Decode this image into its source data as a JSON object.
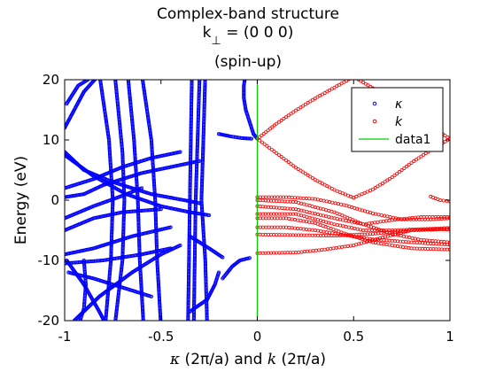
{
  "title": {
    "line1": "Complex-band structure",
    "line2_prefix": "k",
    "line2_sub": "⊥",
    "line2_rest": " = (0  0  0)",
    "line3": "(spin-up)"
  },
  "xlabel": {
    "kappa": "κ",
    "unit1": " (2π/a)  and  ",
    "k": "k",
    "unit2": " (2π/a)"
  },
  "ylabel": "Energy (eV)",
  "legend": {
    "placement": "top-right",
    "entries": [
      {
        "label": "κ",
        "marker": "circle",
        "color": "#0000ff",
        "italic": true
      },
      {
        "label": "k",
        "marker": "circle",
        "color": "#ff0000",
        "italic": true
      },
      {
        "label": "data1",
        "marker": "line",
        "color": "#00cc00",
        "italic": false
      }
    ]
  },
  "colors": {
    "kappa": "#0000ff",
    "k": "#ff0000",
    "data1": "#00cc00"
  },
  "chart_data": {
    "type": "scatter",
    "xlim": [
      -1,
      1
    ],
    "ylim": [
      -20,
      20
    ],
    "xticks": [
      -1,
      -0.5,
      0,
      0.5,
      1
    ],
    "xtick_labels": [
      "-1",
      "-0.5",
      "0",
      "0.5",
      "1"
    ],
    "yticks": [
      -20,
      -10,
      0,
      10,
      20
    ],
    "ytick_labels": [
      "-20",
      "-10",
      "0",
      "10",
      "20"
    ],
    "grid": false,
    "series": [
      {
        "name": "κ",
        "marker": "circle",
        "curves": [
          [
            [
              -0.06,
              21
            ],
            [
              -0.07,
              19
            ],
            [
              -0.07,
              17
            ],
            [
              -0.06,
              15
            ],
            [
              -0.04,
              13
            ],
            [
              -0.02,
              11
            ],
            [
              0.0,
              10.2
            ]
          ],
          [
            [
              -0.2,
              11
            ],
            [
              -0.14,
              10.6
            ],
            [
              -0.08,
              10.3
            ],
            [
              -0.03,
              10.2
            ]
          ],
          [
            [
              -0.18,
              -13
            ],
            [
              -0.13,
              -11
            ],
            [
              -0.09,
              -10
            ],
            [
              -0.04,
              -9.6
            ]
          ],
          [
            [
              -0.27,
              21
            ],
            [
              -0.28,
              10
            ],
            [
              -0.29,
              0
            ],
            [
              -0.27,
              -10
            ],
            [
              -0.26,
              -21
            ]
          ],
          [
            [
              -0.3,
              20
            ],
            [
              -0.32,
              0
            ],
            [
              -0.33,
              -21
            ]
          ],
          [
            [
              -0.34,
              20
            ],
            [
              -0.35,
              0
            ],
            [
              -0.36,
              -21
            ]
          ],
          [
            [
              -0.6,
              21
            ],
            [
              -0.55,
              10
            ],
            [
              -0.53,
              0
            ],
            [
              -0.52,
              -10
            ],
            [
              -0.5,
              -21
            ]
          ],
          [
            [
              -0.67,
              20
            ],
            [
              -0.64,
              10
            ],
            [
              -0.62,
              0
            ],
            [
              -0.61,
              -10
            ],
            [
              -0.59,
              -21
            ]
          ],
          [
            [
              -0.82,
              21
            ],
            [
              -0.77,
              10
            ],
            [
              -0.75,
              0
            ],
            [
              -0.76,
              -10
            ],
            [
              -0.79,
              -21
            ]
          ],
          [
            [
              -0.74,
              21
            ],
            [
              -0.7,
              8
            ],
            [
              -0.69,
              0
            ],
            [
              -0.7,
              -10
            ],
            [
              -0.74,
              -21
            ]
          ],
          [
            [
              -0.99,
              16
            ],
            [
              -0.93,
              19
            ],
            [
              -0.88,
              20
            ]
          ],
          [
            [
              -1.0,
              12
            ],
            [
              -0.9,
              18
            ],
            [
              -0.83,
              20.5
            ]
          ],
          [
            [
              -0.99,
              -10
            ],
            [
              -0.9,
              -14
            ],
            [
              -0.82,
              -18.5
            ],
            [
              -0.78,
              -21
            ]
          ],
          [
            [
              -0.93,
              -21
            ],
            [
              -0.9,
              -18
            ],
            [
              -0.89,
              -14
            ],
            [
              -0.9,
              -10
            ]
          ],
          [
            [
              -1.0,
              8
            ],
            [
              -0.9,
              5
            ],
            [
              -0.75,
              3
            ],
            [
              -0.55,
              1
            ],
            [
              -0.38,
              0
            ],
            [
              -0.3,
              -0.5
            ]
          ],
          [
            [
              -1.0,
              7.5
            ],
            [
              -0.85,
              4
            ],
            [
              -0.68,
              1
            ],
            [
              -0.5,
              -1
            ],
            [
              -0.35,
              -2
            ],
            [
              -0.25,
              -2.5
            ]
          ],
          [
            [
              -1.0,
              0.5
            ],
            [
              -0.9,
              1
            ],
            [
              -0.8,
              2.5
            ],
            [
              -0.6,
              4.5
            ],
            [
              -0.45,
              5.5
            ],
            [
              -0.3,
              6.5
            ]
          ],
          [
            [
              -1.0,
              2
            ],
            [
              -0.85,
              3.5
            ],
            [
              -0.7,
              5.5
            ],
            [
              -0.55,
              7
            ],
            [
              -0.4,
              8
            ]
          ],
          [
            [
              -1.0,
              -3
            ],
            [
              -0.85,
              -1
            ],
            [
              -0.72,
              0.5
            ],
            [
              -0.6,
              2
            ]
          ],
          [
            [
              -1.0,
              -5
            ],
            [
              -0.85,
              -3
            ],
            [
              -0.7,
              -2
            ],
            [
              -0.5,
              -1.5
            ]
          ],
          [
            [
              -1.0,
              -9
            ],
            [
              -0.85,
              -8
            ],
            [
              -0.65,
              -6
            ],
            [
              -0.45,
              -4.5
            ]
          ],
          [
            [
              -1.0,
              -10.5
            ],
            [
              -0.8,
              -10
            ],
            [
              -0.6,
              -9
            ],
            [
              -0.45,
              -8
            ]
          ],
          [
            [
              -0.95,
              -20
            ],
            [
              -0.82,
              -16
            ],
            [
              -0.65,
              -12
            ],
            [
              -0.5,
              -9
            ],
            [
              -0.4,
              -7.5
            ]
          ],
          [
            [
              -0.98,
              -12
            ],
            [
              -0.85,
              -13
            ],
            [
              -0.7,
              -14.5
            ],
            [
              -0.55,
              -16
            ]
          ],
          [
            [
              -0.2,
              -12
            ],
            [
              -0.22,
              -14
            ],
            [
              -0.26,
              -16.5
            ],
            [
              -0.35,
              -18.5
            ]
          ],
          [
            [
              -0.18,
              -9.5
            ],
            [
              -0.25,
              -8
            ],
            [
              -0.35,
              -6
            ]
          ]
        ]
      },
      {
        "name": "k",
        "marker": "circle",
        "curves": [
          [
            [
              0.0,
              10.2
            ],
            [
              0.1,
              12.7
            ],
            [
              0.2,
              14.9
            ],
            [
              0.3,
              16.9
            ],
            [
              0.4,
              18.7
            ],
            [
              0.5,
              20.5
            ]
          ],
          [
            [
              0.0,
              10.2
            ],
            [
              0.1,
              7.8
            ],
            [
              0.2,
              5.4
            ],
            [
              0.3,
              3.4
            ],
            [
              0.4,
              1.7
            ],
            [
              0.5,
              0.4
            ]
          ],
          [
            [
              0.5,
              0.4
            ],
            [
              0.6,
              1.8
            ],
            [
              0.7,
              3.8
            ],
            [
              0.8,
              6.2
            ],
            [
              0.9,
              8.3
            ],
            [
              1.0,
              10.2
            ]
          ],
          [
            [
              0.5,
              20.5
            ],
            [
              0.6,
              18.6
            ],
            [
              0.7,
              16.7
            ],
            [
              0.8,
              14.5
            ],
            [
              0.9,
              12.3
            ],
            [
              1.0,
              10.2
            ]
          ],
          [
            [
              0.0,
              0.5
            ],
            [
              0.15,
              0.5
            ],
            [
              0.3,
              0.2
            ],
            [
              0.45,
              -0.8
            ],
            [
              0.6,
              -2.2
            ],
            [
              0.75,
              -3.2
            ],
            [
              0.9,
              -3.2
            ],
            [
              1.0,
              -3.0
            ]
          ],
          [
            [
              0.0,
              0.0
            ],
            [
              0.2,
              -0.3
            ],
            [
              0.4,
              -2.0
            ],
            [
              0.55,
              -4.0
            ],
            [
              0.7,
              -5.6
            ],
            [
              0.85,
              -6.6
            ],
            [
              1.0,
              -7.0
            ]
          ],
          [
            [
              0.0,
              -2.3
            ],
            [
              0.2,
              -2.3
            ],
            [
              0.4,
              -4.0
            ],
            [
              0.55,
              -5.0
            ],
            [
              0.7,
              -5.0
            ],
            [
              0.85,
              -4.8
            ],
            [
              1.0,
              -4.6
            ]
          ],
          [
            [
              0.0,
              -3.0
            ],
            [
              0.15,
              -3.0
            ],
            [
              0.3,
              -3.8
            ],
            [
              0.45,
              -5.5
            ],
            [
              0.6,
              -7.0
            ],
            [
              0.8,
              -8.0
            ],
            [
              1.0,
              -8.2
            ]
          ],
          [
            [
              0.0,
              -4.5
            ],
            [
              0.15,
              -4.5
            ],
            [
              0.3,
              -5.0
            ],
            [
              0.45,
              -5.8
            ],
            [
              0.6,
              -6.5
            ],
            [
              0.8,
              -7.0
            ],
            [
              1.0,
              -7.4
            ]
          ],
          [
            [
              0.0,
              -5.7
            ],
            [
              0.2,
              -5.8
            ],
            [
              0.4,
              -5.9
            ],
            [
              0.6,
              -5.6
            ],
            [
              0.8,
              -5.0
            ],
            [
              1.0,
              -4.8
            ]
          ],
          [
            [
              0.0,
              -8.8
            ],
            [
              0.2,
              -8.7
            ],
            [
              0.35,
              -8.2
            ],
            [
              0.5,
              -7.5
            ],
            [
              0.65,
              -6.2
            ],
            [
              0.8,
              -5.0
            ],
            [
              0.95,
              -4.8
            ],
            [
              1.0,
              -4.9
            ]
          ],
          [
            [
              0.0,
              -1.0
            ],
            [
              0.2,
              -1.5
            ],
            [
              0.4,
              -3.0
            ],
            [
              0.55,
              -4.0
            ],
            [
              0.7,
              -3.3
            ],
            [
              0.85,
              -2.8
            ],
            [
              1.0,
              -2.8
            ]
          ],
          [
            [
              0.9,
              0.6
            ],
            [
              0.95,
              0.0
            ],
            [
              1.0,
              -0.2
            ]
          ]
        ]
      },
      {
        "name": "data1",
        "marker": "line",
        "points": [
          [
            0,
            -20
          ],
          [
            0,
            20
          ]
        ]
      }
    ]
  }
}
